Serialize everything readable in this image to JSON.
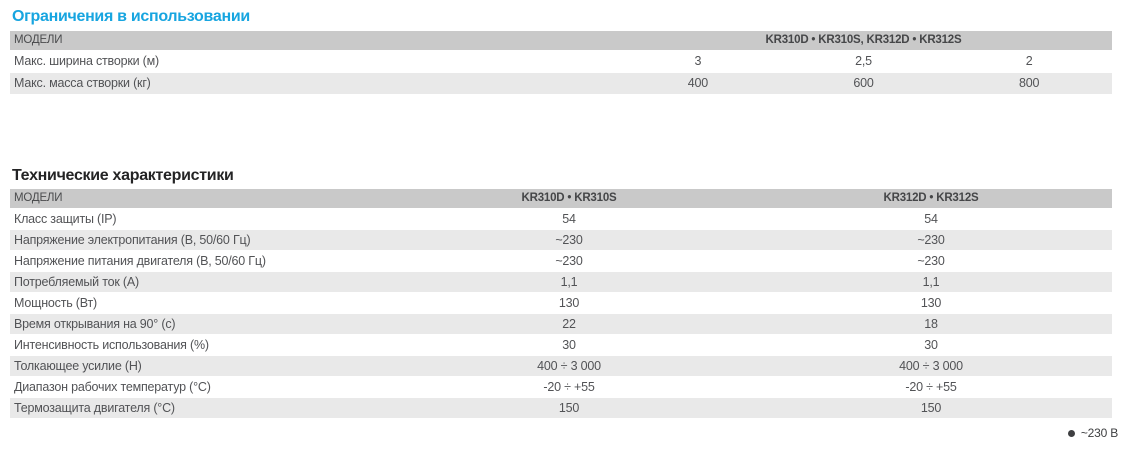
{
  "colors": {
    "accent_cyan": "#17a5e0",
    "table_header_bg": "#c9c9c9",
    "row_alt_bg": "#e9e9e9",
    "text_gray": "#525356"
  },
  "tables": [
    {
      "title": "Ограничения в использовании",
      "header": {
        "label": "МОДЕЛИ",
        "columns": [
          "KR310D • KR310S, KR312D • KR312S"
        ]
      },
      "rows": [
        {
          "label": "Макс. ширина створки (м)",
          "values": [
            "3",
            "2,5",
            "2"
          ]
        },
        {
          "label": "Макс. масса створки (кг)",
          "values": [
            "400",
            "600",
            "800"
          ]
        }
      ]
    },
    {
      "title": "Технические характеристики",
      "header": {
        "label": "МОДЕЛИ",
        "columns": [
          "KR310D • KR310S",
          "KR312D • KR312S"
        ]
      },
      "rows": [
        {
          "label": "Класс защиты (IP)",
          "values": [
            "54",
            "54"
          ]
        },
        {
          "label": "Напряжение электропитания (В, 50/60 Гц)",
          "values": [
            "~230",
            "~230"
          ]
        },
        {
          "label": "Напряжение питания двигателя (В, 50/60 Гц)",
          "values": [
            "~230",
            "~230"
          ]
        },
        {
          "label": "Потребляемый ток (А)",
          "values": [
            "1,1",
            "1,1"
          ]
        },
        {
          "label": "Мощность (Вт)",
          "values": [
            "130",
            "130"
          ]
        },
        {
          "label": "Время открывания на 90° (с)",
          "values": [
            "22",
            "18"
          ]
        },
        {
          "label": "Интенсивность использования (%)",
          "values": [
            "30",
            "30"
          ]
        },
        {
          "label": "Толкающее усилие (Н)",
          "values": [
            "400 ÷ 3 000",
            "400 ÷ 3 000"
          ]
        },
        {
          "label": "Диапазон рабочих температур (°C)",
          "values": [
            "-20 ÷ +55",
            "-20 ÷ +55"
          ]
        },
        {
          "label": "Термозащита двигателя (°C)",
          "values": [
            "150",
            "150"
          ]
        }
      ]
    }
  ],
  "footnote": {
    "label": "~230 В"
  }
}
